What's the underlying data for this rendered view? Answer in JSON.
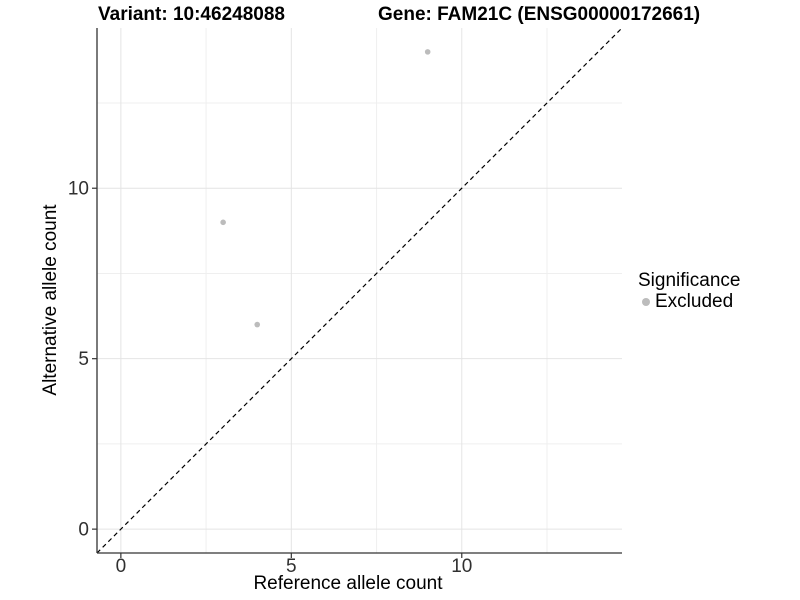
{
  "chart_data": {
    "type": "scatter",
    "title": "Variant: 10:46248088",
    "title2": "Gene: FAM21C (ENSG00000172661)",
    "xlabel": "Reference allele count",
    "ylabel": "Alternative allele count",
    "xlim": [
      -0.7,
      14.7
    ],
    "ylim": [
      -0.7,
      14.7
    ],
    "xticks": [
      0,
      5,
      10
    ],
    "yticks": [
      0,
      5,
      10
    ],
    "minor_xticks": [
      2.5,
      7.5,
      12.5
    ],
    "minor_yticks": [
      2.5,
      7.5,
      12.5
    ],
    "grid": "major+minor",
    "series": [
      {
        "name": "Excluded",
        "color": "#bcbcbc",
        "points": [
          {
            "x": 3,
            "y": 9
          },
          {
            "x": 4,
            "y": 6
          },
          {
            "x": 9,
            "y": 14
          }
        ]
      }
    ],
    "reference_line": {
      "type": "identity",
      "equation": "y = x",
      "style": "dashed",
      "color": "#000000"
    },
    "legend": {
      "title": "Significance",
      "position": "right",
      "entries": [
        "Excluded"
      ]
    },
    "colors": {
      "point": "#bcbcbc",
      "grid_major": "#e4e4e4",
      "grid_minor": "#efefef",
      "axis_line": "#333333",
      "tick_text": "#303030",
      "background": "#ffffff"
    }
  }
}
